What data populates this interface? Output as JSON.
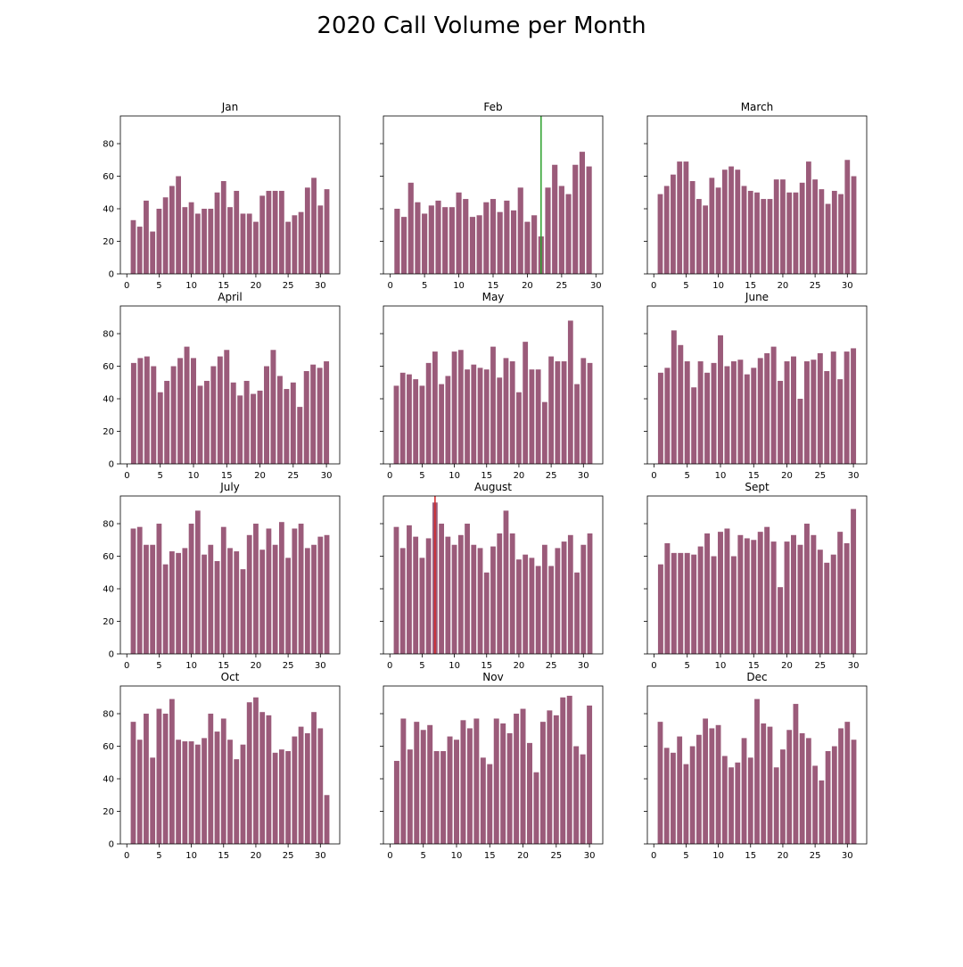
{
  "figure": {
    "title": "2020 Call Volume per Month"
  },
  "chart_data": {
    "type": "bar",
    "bar_color": "#9b5b7a",
    "ylim": [
      0,
      97
    ],
    "yticks": [
      0,
      20,
      40,
      60,
      80
    ],
    "xticks": [
      0,
      5,
      10,
      15,
      20,
      25,
      30
    ],
    "grid": false,
    "panels": [
      {
        "title": "Jan",
        "xlim": [
          -1,
          33
        ],
        "values": [
          33,
          29,
          45,
          26,
          40,
          47,
          54,
          60,
          41,
          44,
          37,
          40,
          40,
          50,
          57,
          41,
          51,
          37,
          37,
          32,
          48,
          51,
          51,
          51,
          32,
          36,
          38,
          53,
          59,
          42,
          52
        ]
      },
      {
        "title": "Feb",
        "xlim": [
          -1,
          31
        ],
        "values": [
          40,
          35,
          56,
          44,
          37,
          42,
          45,
          41,
          41,
          50,
          46,
          35,
          36,
          44,
          46,
          38,
          45,
          39,
          53,
          32,
          36,
          23,
          53,
          67,
          54,
          49,
          67,
          75,
          66
        ],
        "marker": {
          "x": 22,
          "color": "#2ca02c"
        }
      },
      {
        "title": "March",
        "xlim": [
          -1,
          33
        ],
        "values": [
          49,
          54,
          61,
          69,
          69,
          57,
          46,
          42,
          59,
          53,
          64,
          66,
          64,
          54,
          51,
          50,
          46,
          46,
          58,
          58,
          50,
          50,
          56,
          69,
          58,
          52,
          43,
          51,
          49,
          70,
          60
        ]
      },
      {
        "title": "April",
        "xlim": [
          -1,
          32
        ],
        "values": [
          62,
          65,
          66,
          60,
          44,
          51,
          60,
          65,
          72,
          65,
          48,
          51,
          60,
          66,
          70,
          50,
          42,
          51,
          43,
          45,
          60,
          70,
          54,
          46,
          50,
          35,
          57,
          61,
          59,
          63
        ]
      },
      {
        "title": "May",
        "xlim": [
          -1,
          33
        ],
        "values": [
          48,
          56,
          55,
          52,
          48,
          62,
          69,
          49,
          54,
          69,
          70,
          58,
          61,
          59,
          58,
          72,
          53,
          65,
          63,
          44,
          75,
          58,
          58,
          38,
          66,
          63,
          63,
          88,
          49,
          65,
          62
        ]
      },
      {
        "title": "June",
        "xlim": [
          -1,
          32
        ],
        "values": [
          56,
          59,
          82,
          73,
          63,
          47,
          63,
          56,
          62,
          79,
          60,
          63,
          64,
          55,
          59,
          65,
          68,
          72,
          51,
          63,
          66,
          40,
          63,
          64,
          68,
          57,
          69,
          52,
          69,
          71
        ]
      },
      {
        "title": "July",
        "xlim": [
          -1,
          33
        ],
        "values": [
          77,
          78,
          67,
          67,
          80,
          55,
          63,
          62,
          65,
          80,
          88,
          61,
          67,
          57,
          78,
          65,
          63,
          52,
          73,
          80,
          64,
          77,
          67,
          81,
          59,
          77,
          80,
          65,
          67,
          72,
          73
        ]
      },
      {
        "title": "August",
        "xlim": [
          -1,
          33
        ],
        "values": [
          78,
          65,
          79,
          72,
          59,
          71,
          93,
          80,
          72,
          67,
          73,
          80,
          67,
          65,
          50,
          66,
          74,
          88,
          74,
          58,
          61,
          59,
          54,
          67,
          54,
          65,
          69,
          73,
          50,
          67,
          74
        ],
        "marker": {
          "x": 7,
          "color": "#d62728"
        }
      },
      {
        "title": "Sept",
        "xlim": [
          -1,
          32
        ],
        "values": [
          55,
          68,
          62,
          62,
          62,
          61,
          66,
          74,
          60,
          75,
          77,
          60,
          73,
          71,
          70,
          75,
          78,
          69,
          41,
          69,
          73,
          67,
          80,
          73,
          64,
          56,
          61,
          75,
          68,
          89
        ]
      },
      {
        "title": "Oct",
        "xlim": [
          -1,
          33
        ],
        "values": [
          75,
          64,
          80,
          53,
          83,
          80,
          89,
          64,
          63,
          63,
          61,
          65,
          80,
          69,
          77,
          64,
          52,
          61,
          87,
          90,
          81,
          79,
          56,
          58,
          57,
          66,
          72,
          68,
          81,
          71,
          30
        ]
      },
      {
        "title": "Nov",
        "xlim": [
          -1,
          32
        ],
        "values": [
          51,
          77,
          58,
          75,
          70,
          73,
          57,
          57,
          66,
          64,
          76,
          71,
          77,
          53,
          49,
          77,
          74,
          68,
          80,
          83,
          62,
          44,
          75,
          82,
          79,
          90,
          91,
          60,
          55,
          85
        ]
      },
      {
        "title": "Dec",
        "xlim": [
          -1,
          33
        ],
        "values": [
          75,
          59,
          56,
          66,
          49,
          60,
          67,
          77,
          71,
          73,
          54,
          47,
          50,
          65,
          53,
          89,
          74,
          72,
          47,
          58,
          70,
          86,
          68,
          65,
          48,
          39,
          57,
          60,
          71,
          75,
          64
        ]
      }
    ]
  }
}
